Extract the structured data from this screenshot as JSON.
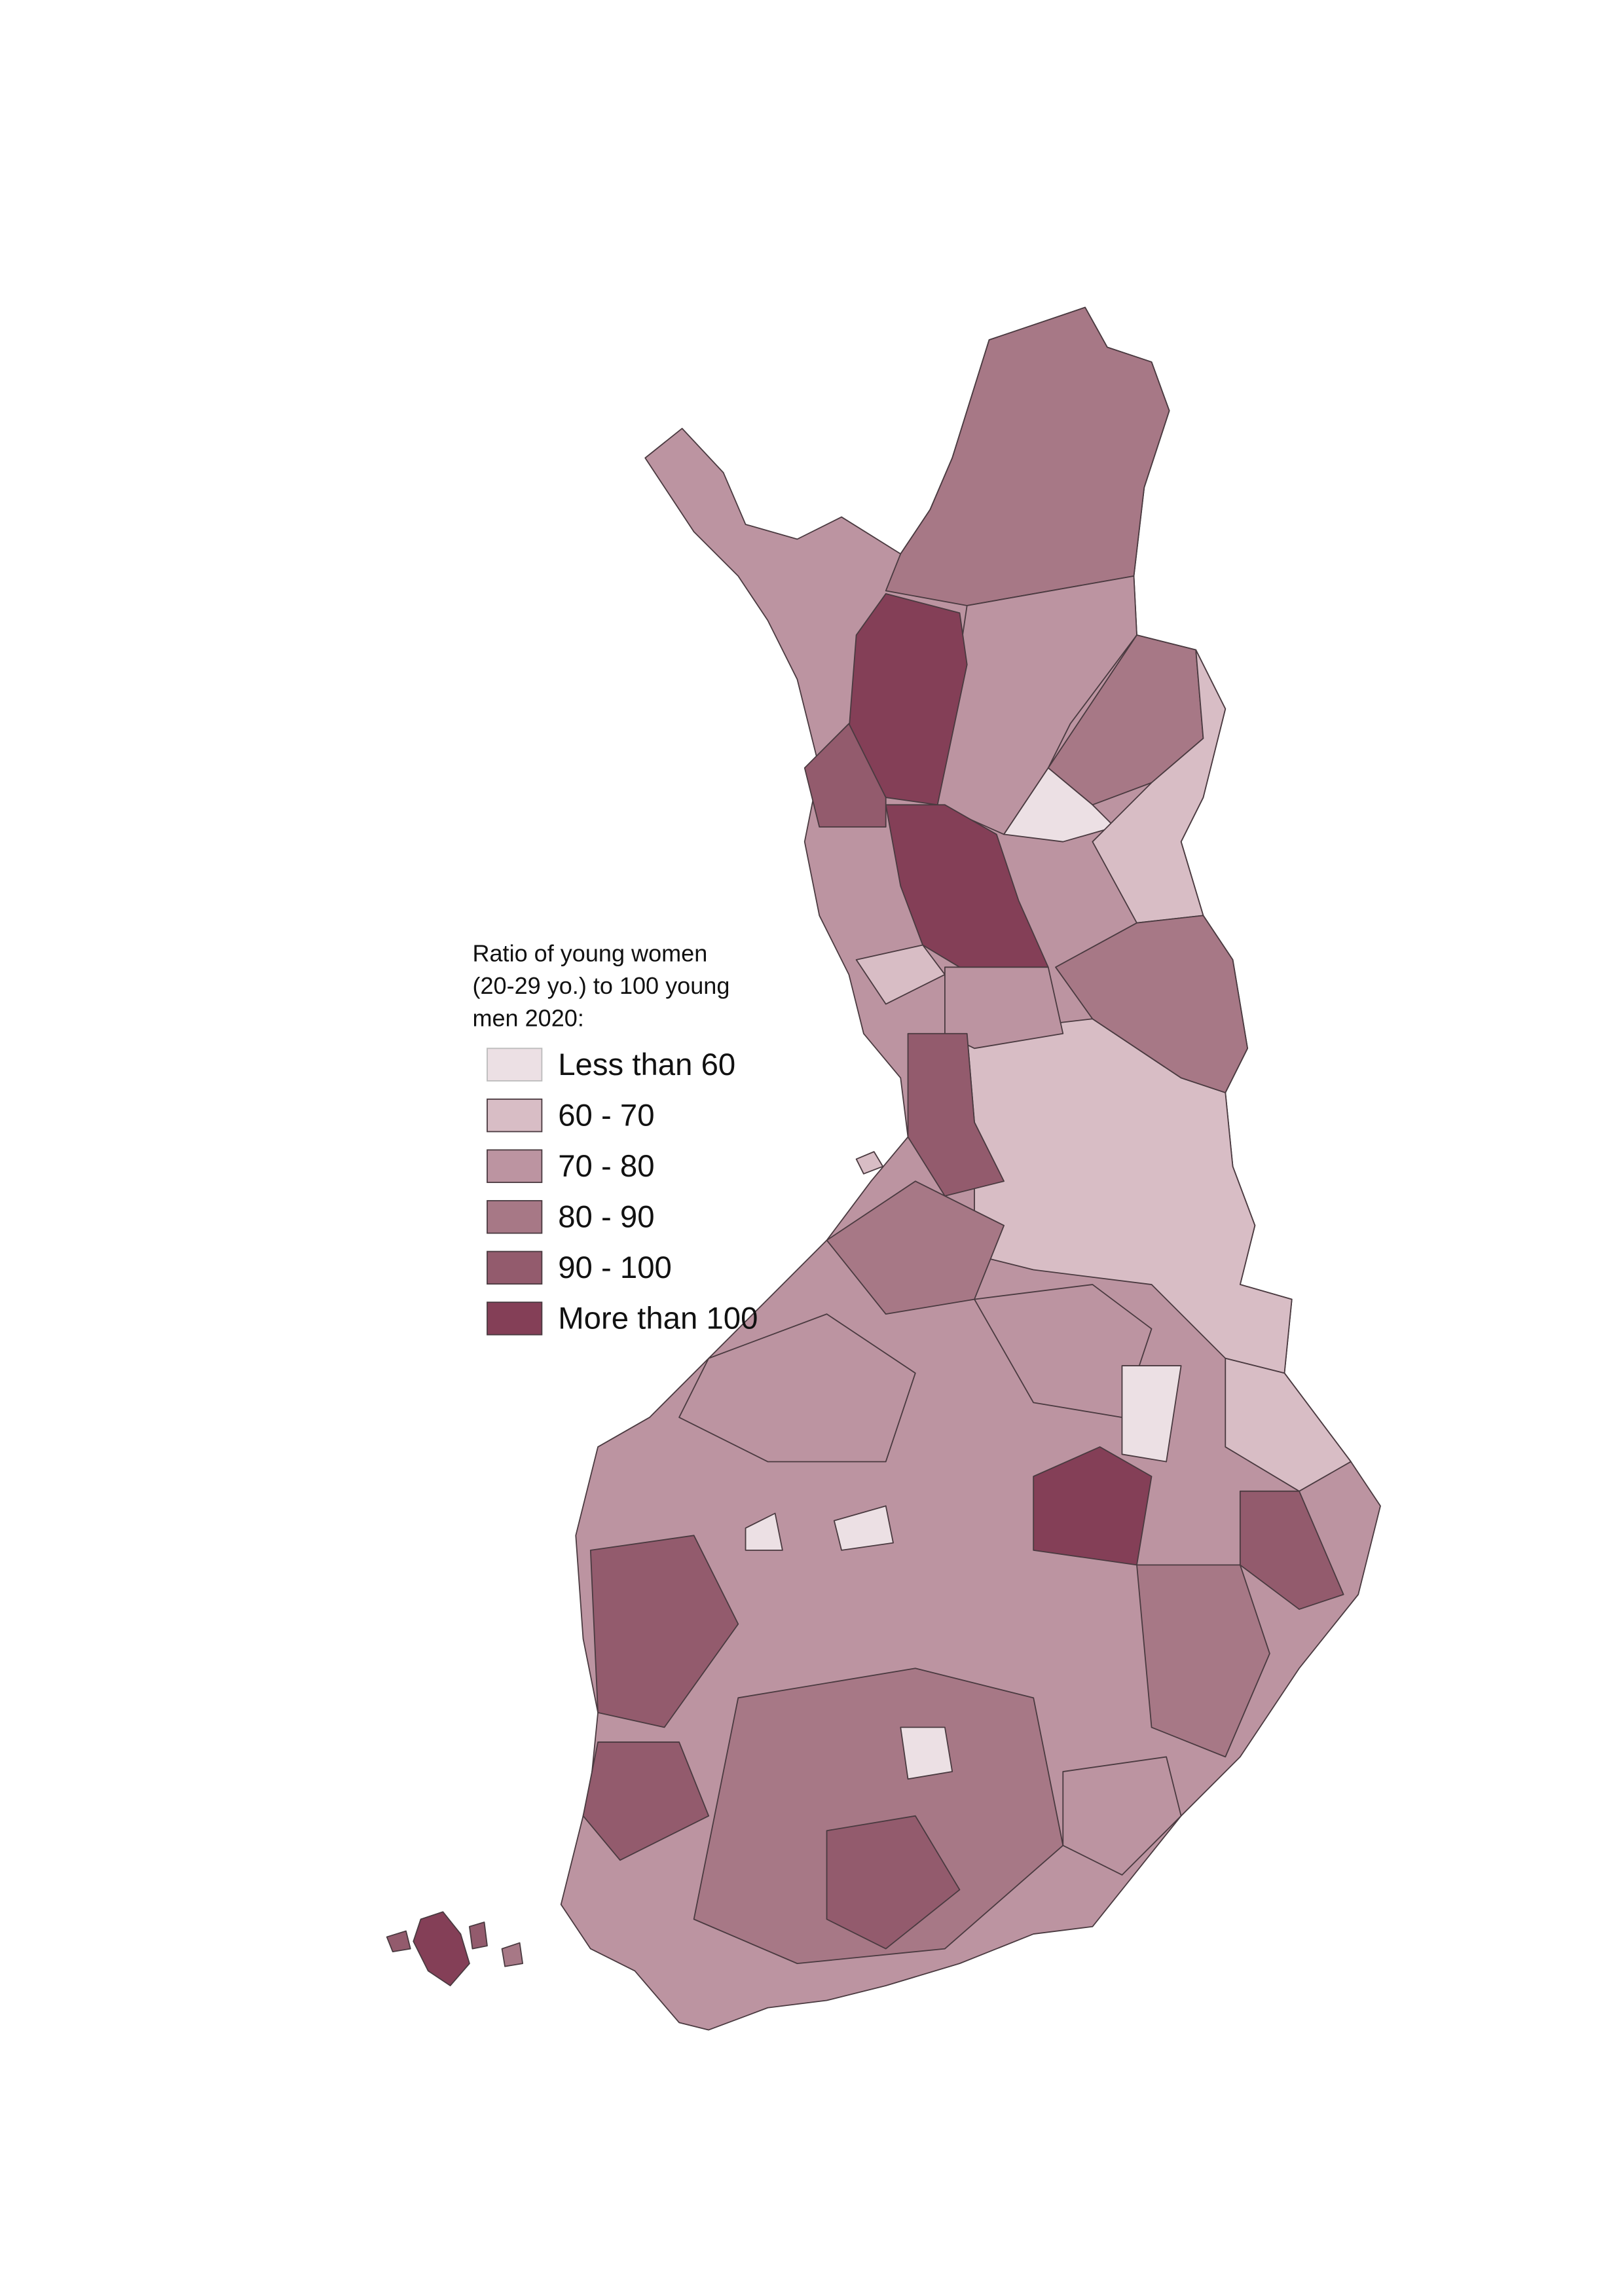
{
  "legend": {
    "title": [
      "Ratio of young women",
      "(20-29 yo.) to 100 young",
      "men 2020:"
    ],
    "items": [
      {
        "label": "Less than 60",
        "color": "#ece0e4"
      },
      {
        "label": "60 - 70",
        "color": "#d8bdc5"
      },
      {
        "label": "70 - 80",
        "color": "#bc94a1"
      },
      {
        "label": "80 - 90",
        "color": "#a77886"
      },
      {
        "label": "90 - 100",
        "color": "#935b6d"
      },
      {
        "label": "More than 100",
        "color": "#843f57"
      }
    ]
  }
}
